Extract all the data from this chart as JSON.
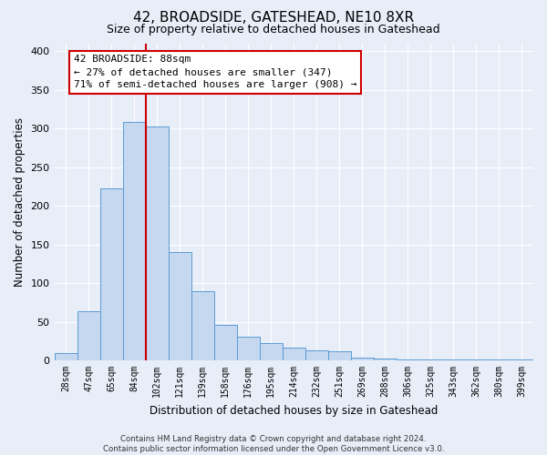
{
  "title": "42, BROADSIDE, GATESHEAD, NE10 8XR",
  "subtitle": "Size of property relative to detached houses in Gateshead",
  "xlabel": "Distribution of detached houses by size in Gateshead",
  "ylabel": "Number of detached properties",
  "categories": [
    "28sqm",
    "47sqm",
    "65sqm",
    "84sqm",
    "102sqm",
    "121sqm",
    "139sqm",
    "158sqm",
    "176sqm",
    "195sqm",
    "214sqm",
    "232sqm",
    "251sqm",
    "269sqm",
    "288sqm",
    "306sqm",
    "325sqm",
    "343sqm",
    "362sqm",
    "380sqm",
    "399sqm"
  ],
  "values": [
    10,
    64,
    222,
    308,
    302,
    140,
    90,
    46,
    31,
    23,
    16,
    13,
    12,
    4,
    2,
    1,
    1,
    1,
    1,
    1,
    1
  ],
  "bar_color": "#c5d8f0",
  "bar_edge_color": "#5b9bd5",
  "vline_x_index": 3,
  "vline_color": "#cc0000",
  "annotation_line1": "42 BROADSIDE: 88sqm",
  "annotation_line2": "← 27% of detached houses are smaller (347)",
  "annotation_line3": "71% of semi-detached houses are larger (908) →",
  "annotation_box_color": "#ffffff",
  "annotation_box_edge": "#cc0000",
  "ylim": [
    0,
    410
  ],
  "yticks": [
    0,
    50,
    100,
    150,
    200,
    250,
    300,
    350,
    400
  ],
  "footer_line1": "Contains HM Land Registry data © Crown copyright and database right 2024.",
  "footer_line2": "Contains public sector information licensed under the Open Government Licence v3.0.",
  "background_color": "#e8eef8",
  "grid_color": "#ffffff",
  "title_fontsize": 11,
  "subtitle_fontsize": 9
}
